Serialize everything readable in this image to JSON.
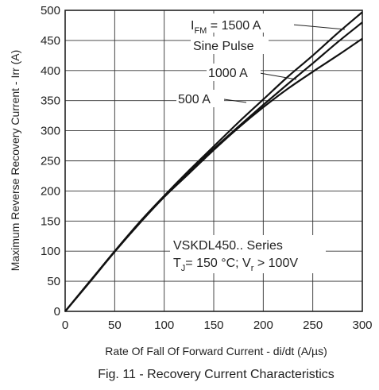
{
  "chart_data": {
    "type": "line",
    "title": "Fig. 11 - Recovery Current Characteristics",
    "xlabel": "Rate Of Fall Of Forward Current - di/dt (A/µs)",
    "ylabel": "Maximum Reverse Recovery Current - Irr (A)",
    "xlim": [
      0,
      300
    ],
    "ylim": [
      0,
      500
    ],
    "x_ticks": [
      "0",
      "50",
      "100",
      "150",
      "200",
      "250",
      "300"
    ],
    "y_ticks": [
      "0",
      "50",
      "100",
      "150",
      "200",
      "250",
      "300",
      "350",
      "400",
      "450",
      "500"
    ],
    "grid": true,
    "x": [
      0,
      25,
      50,
      75,
      100,
      125,
      150,
      175,
      200,
      225,
      250,
      275,
      300
    ],
    "series": [
      {
        "name": "1500 A",
        "values": [
          0,
          50,
          100,
          148,
          192,
          234,
          274,
          314,
          352,
          390,
          425,
          462,
          497
        ]
      },
      {
        "name": "1000 A",
        "values": [
          0,
          50,
          99,
          147,
          191,
          231,
          270,
          307,
          343,
          378,
          412,
          447,
          480
        ]
      },
      {
        "name": "500 A",
        "values": [
          0,
          49,
          99,
          146,
          190,
          229,
          268,
          305,
          339,
          370,
          398,
          425,
          453
        ]
      }
    ],
    "annotations": {
      "ifm_prefix": "I",
      "ifm_sub": "FM",
      "ifm_value": " = 1500 A",
      "pulse": "Sine Pulse",
      "label_1000": "1000 A",
      "label_500": "500 A",
      "series_name": "VSKDL450.. Series",
      "tj_prefix": "T",
      "tj_sub": "J",
      "tj_mid": "= 150 °C; V",
      "vr_sub": "r",
      "vr_value": " > 100V"
    }
  }
}
